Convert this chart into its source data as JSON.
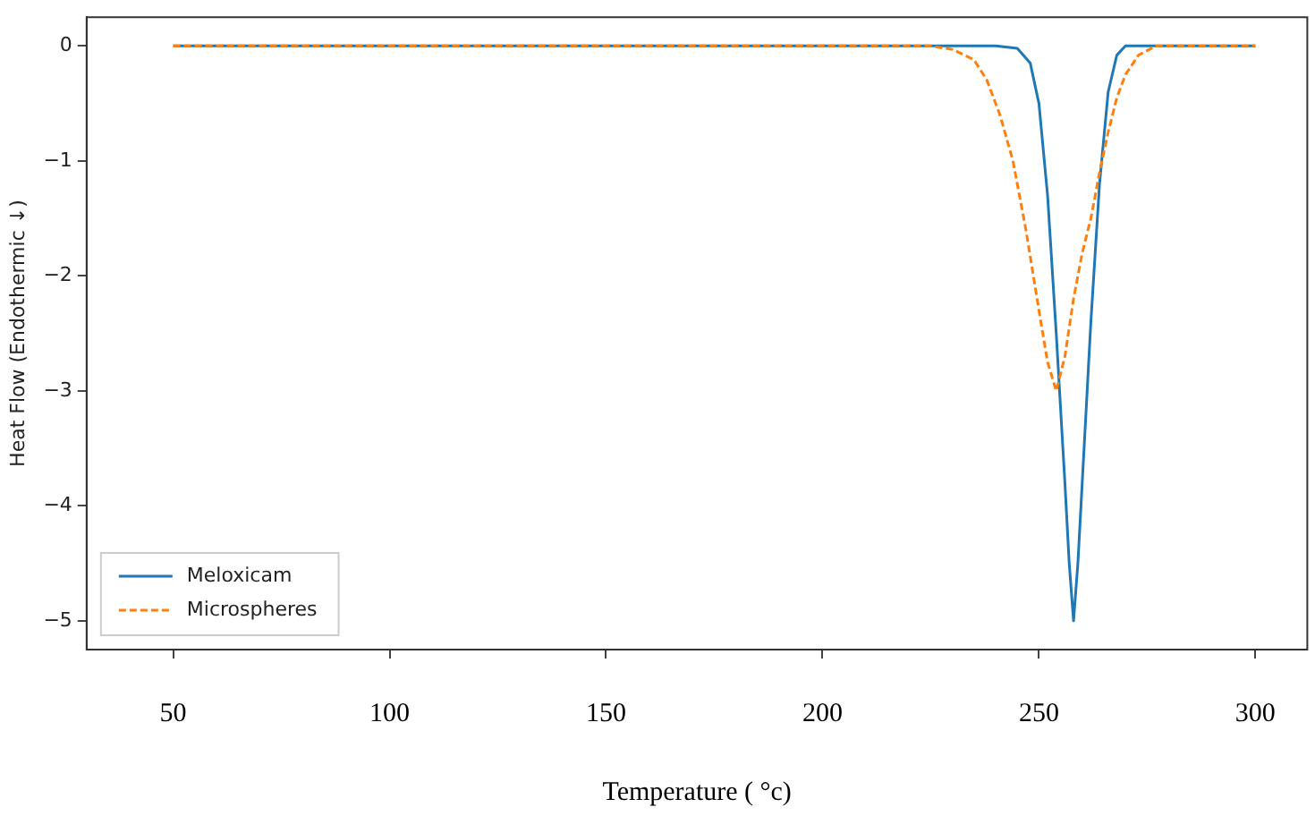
{
  "chart_data": {
    "type": "line",
    "xlabel": "Temperature ( °c)",
    "ylabel": "Heat Flow (Endothermic ↓)",
    "xlim": [
      30,
      312
    ],
    "xticks": [
      50,
      100,
      150,
      200,
      250,
      300
    ],
    "ylim": [
      -5.25,
      0.25
    ],
    "yticks": [
      0,
      -1,
      -2,
      -3,
      -4,
      -5
    ],
    "grid": false,
    "legend": "bottom left",
    "series": [
      {
        "name": "Meloxicam",
        "color": "#1f77b4",
        "line_style": "solid",
        "x": [
          50,
          240,
          245,
          248,
          250,
          252,
          254,
          256,
          257,
          258,
          259,
          260,
          262,
          264,
          266,
          268,
          270,
          300
        ],
        "values": [
          0,
          0,
          -0.02,
          -0.15,
          -0.5,
          -1.3,
          -2.5,
          -3.8,
          -4.5,
          -5,
          -4.5,
          -3.8,
          -2.4,
          -1.2,
          -0.4,
          -0.08,
          0,
          0
        ]
      },
      {
        "name": "Microspheres",
        "color": "#ff7f0e",
        "line_style": "dashed",
        "x": [
          50,
          225,
          230,
          235,
          238,
          241,
          244,
          247,
          250,
          252,
          254,
          256,
          258,
          260,
          262,
          264,
          266,
          268,
          270,
          273,
          277,
          300
        ],
        "values": [
          0,
          0,
          -0.03,
          -0.12,
          -0.3,
          -0.6,
          -1.0,
          -1.6,
          -2.3,
          -2.75,
          -3,
          -2.7,
          -2.2,
          -1.8,
          -1.5,
          -1.1,
          -0.75,
          -0.45,
          -0.25,
          -0.08,
          0,
          0
        ]
      }
    ]
  }
}
